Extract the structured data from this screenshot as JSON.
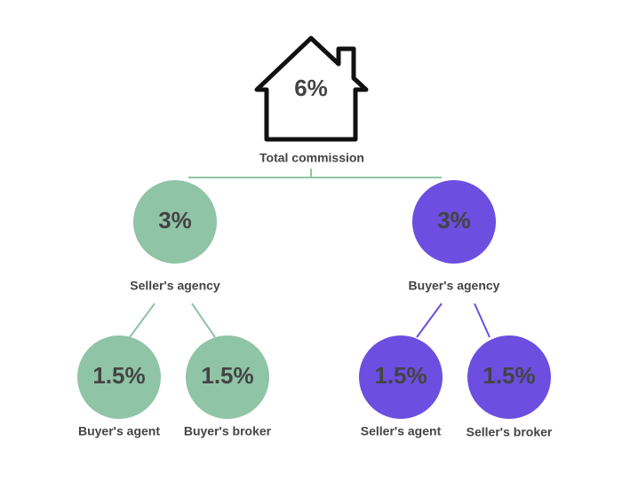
{
  "total": {
    "value": "6%",
    "label": "Total commission"
  },
  "agencies": [
    {
      "value": "3%",
      "label": "Seller's agency",
      "splits": [
        {
          "value": "1.5%",
          "label": "Buyer's agent"
        },
        {
          "value": "1.5%",
          "label": "Buyer's broker"
        }
      ]
    },
    {
      "value": "3%",
      "label": "Buyer's agency",
      "splits": [
        {
          "value": "1.5%",
          "label": "Seller's agent"
        },
        {
          "value": "1.5%",
          "label": "Seller's broker"
        }
      ]
    }
  ]
}
